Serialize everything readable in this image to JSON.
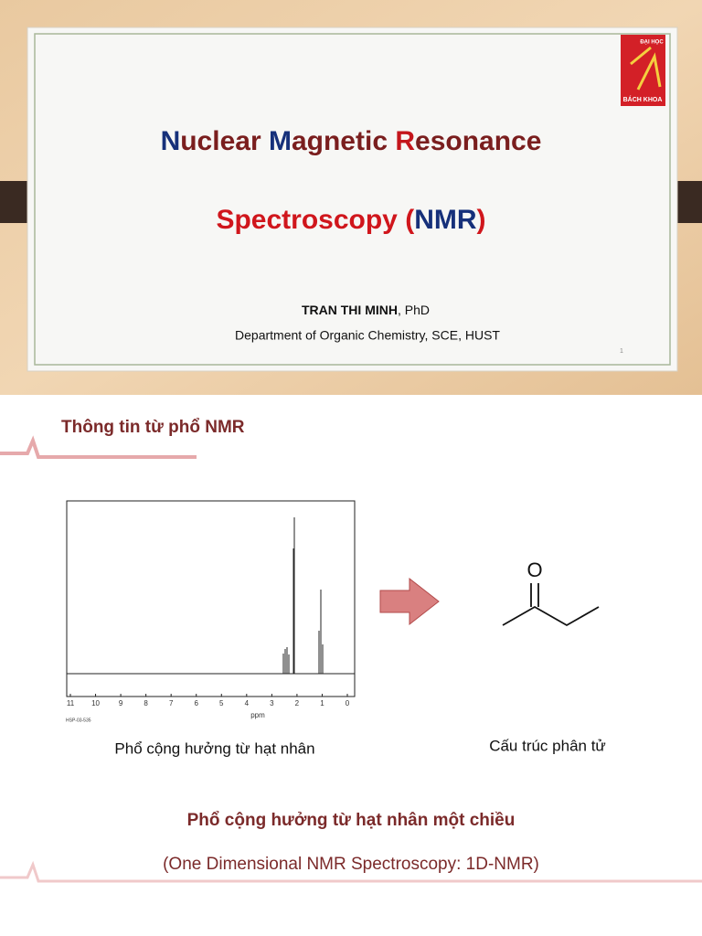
{
  "slide1": {
    "logo": {
      "top": "ĐẠI HỌC",
      "bottom": "BÁCH KHOA"
    },
    "title_line1": [
      "N",
      "uclear ",
      "M",
      "agnetic ",
      "R",
      "esonance"
    ],
    "title_line2": [
      "Spectroscopy (",
      "NMR",
      ")"
    ],
    "author_name": "TRAN THI MINH",
    "author_degree": ", PhD",
    "department": "Department of Organic Chemistry, SCE, HUST",
    "page_number": "1"
  },
  "slide2": {
    "heading": "Thông tin từ phổ NMR",
    "spectrum": {
      "ticks": [
        "11",
        "10",
        "9",
        "8",
        "7",
        "6",
        "5",
        "4",
        "3",
        "2",
        "1",
        "0"
      ],
      "unit": "ppm",
      "code": "HSP-03-535"
    },
    "molecule_atom": "O",
    "caption_left": "Phổ cộng hưởng từ hạt nhân",
    "caption_right": "Cấu trúc phân tử",
    "subtitle": "Phổ cộng hưởng từ hạt nhân một chiều",
    "subtitle_en": "(One Dimensional NMR Spectroscopy: 1D-NMR)"
  }
}
